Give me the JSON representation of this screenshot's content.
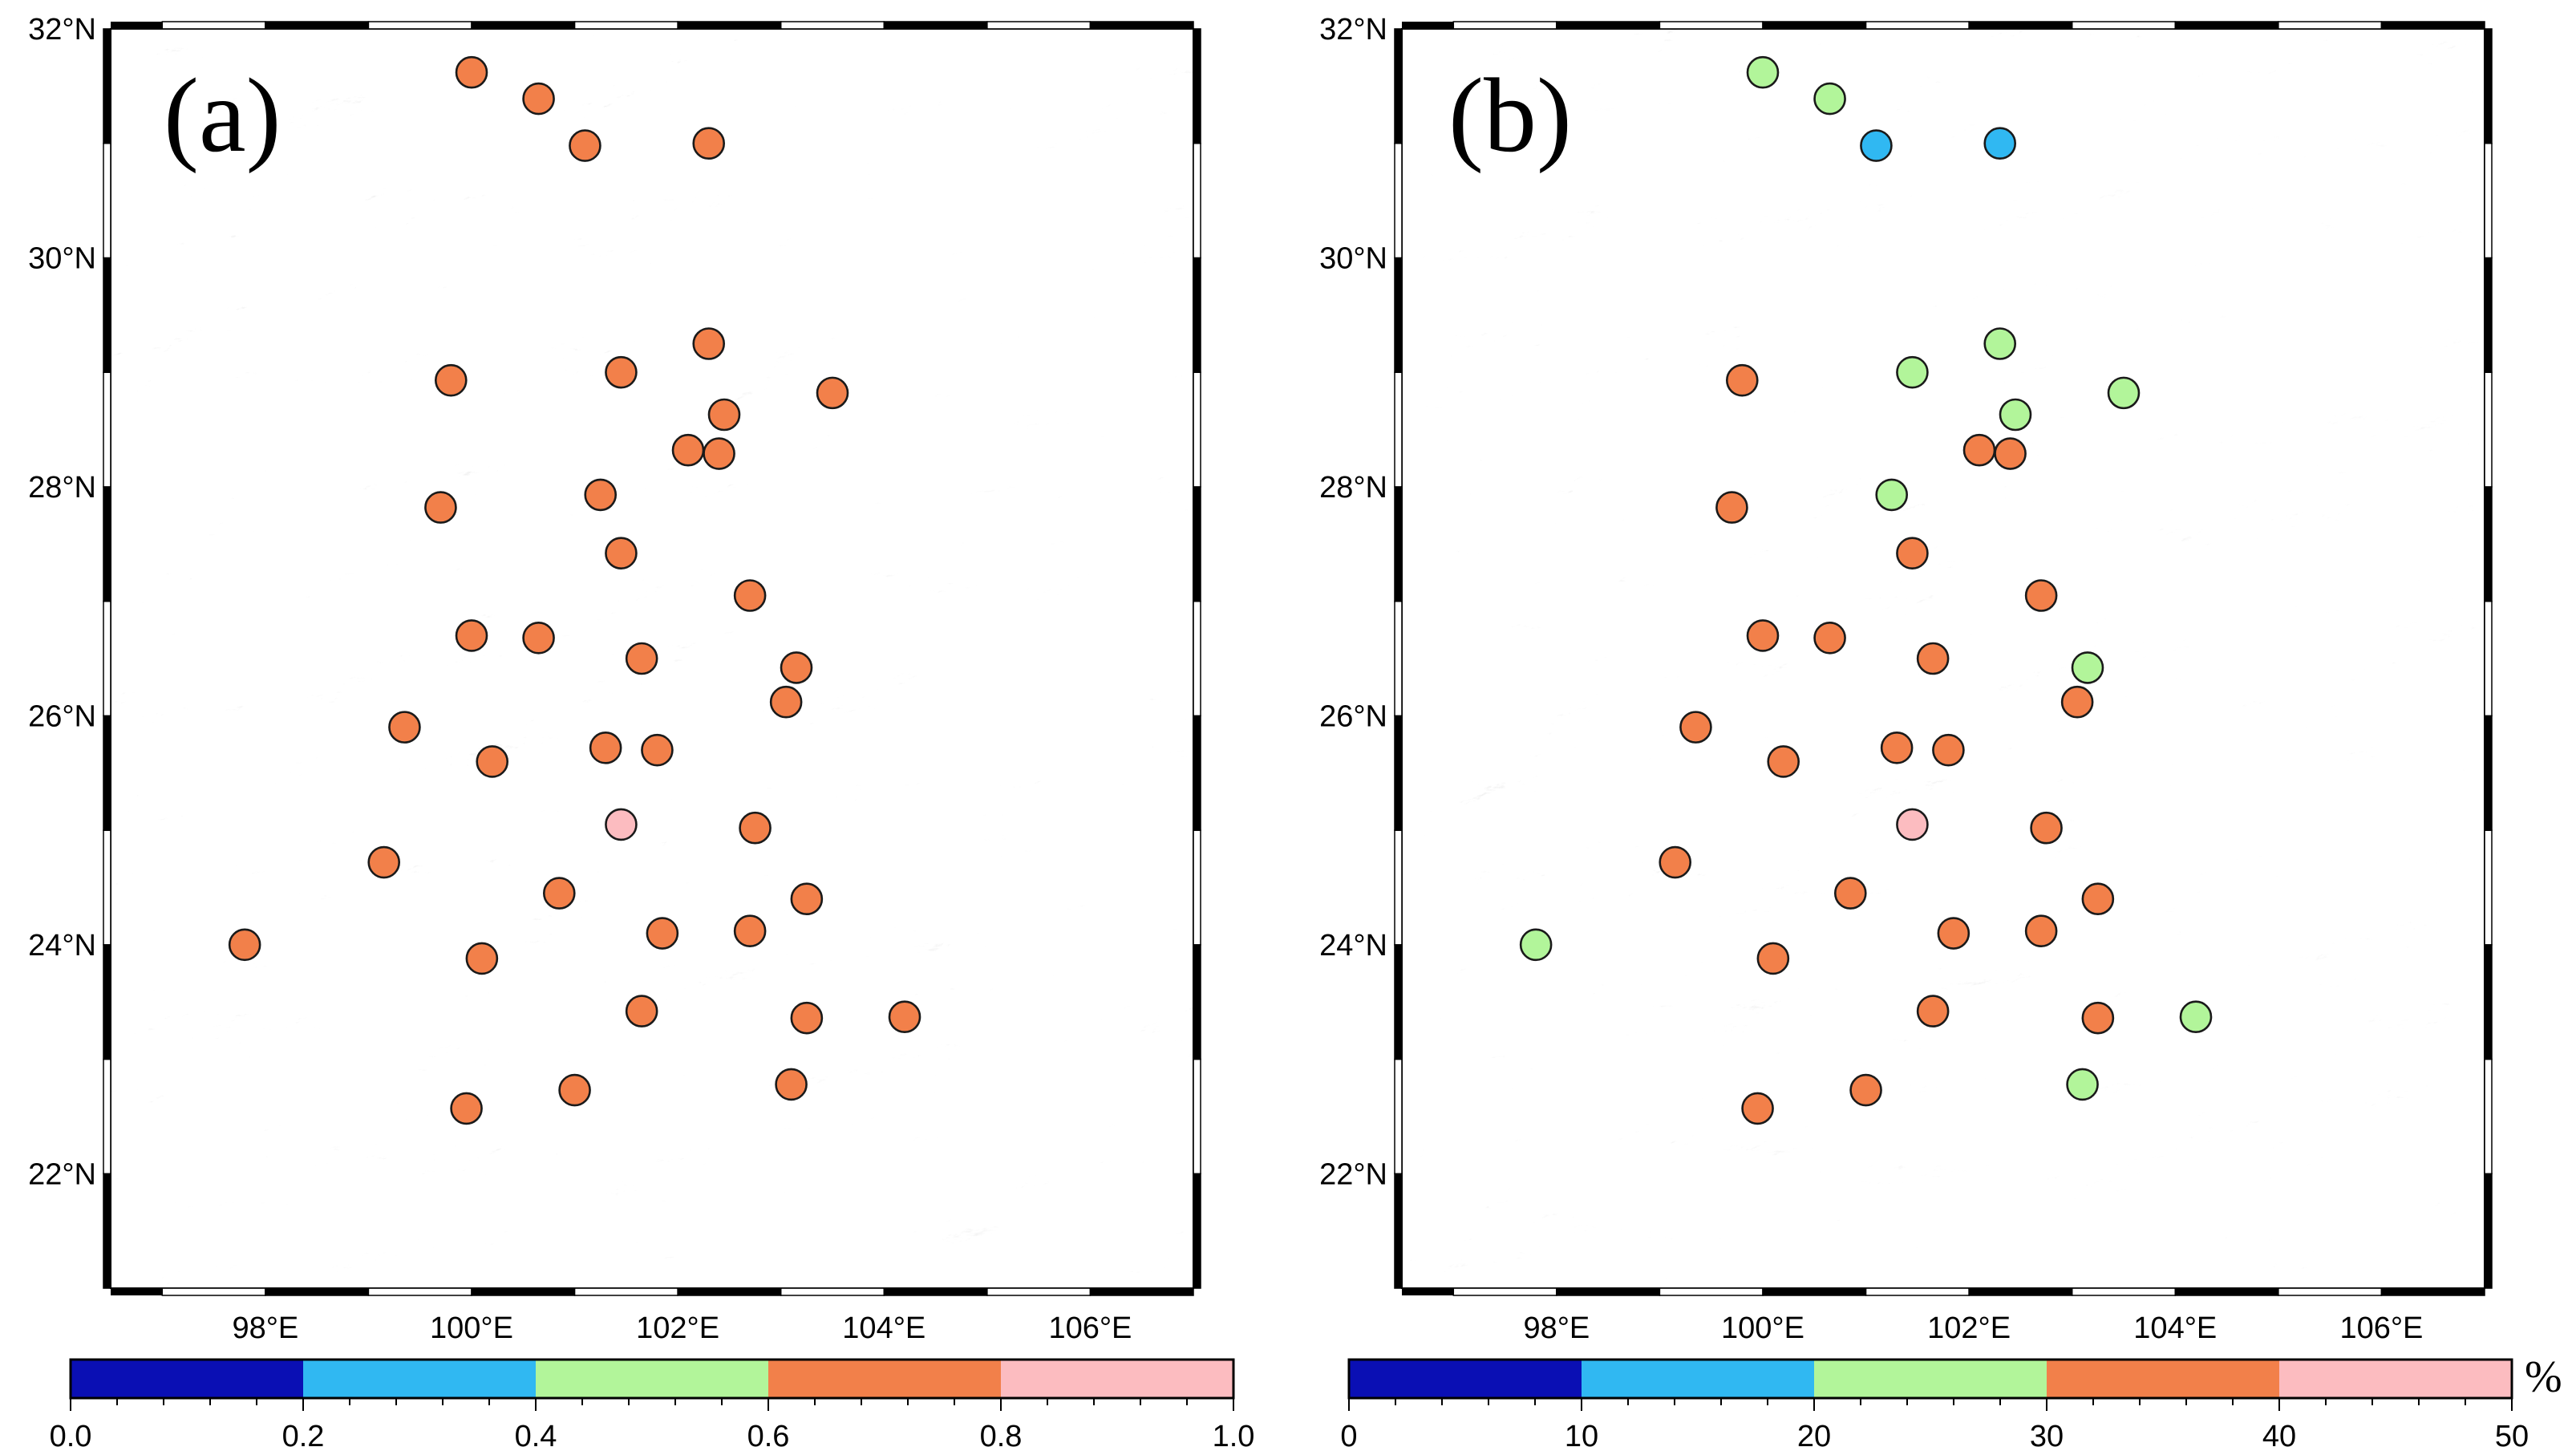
{
  "figure": {
    "panels": [
      {
        "id": "a",
        "label": "(a)",
        "lon_range": [
          96.5,
          107
        ],
        "lat_range": [
          21,
          32
        ],
        "lon_ticks": [
          {
            "value": 98,
            "label": "98°E"
          },
          {
            "value": 100,
            "label": "100°E"
          },
          {
            "value": 102,
            "label": "102°E"
          },
          {
            "value": 104,
            "label": "104°E"
          },
          {
            "value": 106,
            "label": "106°E"
          }
        ],
        "lat_ticks": [
          {
            "value": 22,
            "label": "22°N"
          },
          {
            "value": 24,
            "label": "24°N"
          },
          {
            "value": 26,
            "label": "26°N"
          },
          {
            "value": 28,
            "label": "28°N"
          },
          {
            "value": 30,
            "label": "30°N"
          },
          {
            "value": 32,
            "label": "32°N"
          }
        ],
        "colorbar": {
          "range": [
            0,
            1
          ],
          "bin_colors": [
            "#0a0fb4",
            "#30b8f2",
            "#b2f59a",
            "#f2804a",
            "#fcbcc0"
          ],
          "labels": [
            "0.0",
            "0.2",
            "0.4",
            "0.6",
            "0.8",
            "1.0"
          ],
          "unit": ""
        }
      },
      {
        "id": "b",
        "label": "(b)",
        "lon_range": [
          96.5,
          107
        ],
        "lat_range": [
          21,
          32
        ],
        "lon_ticks": [
          {
            "value": 98,
            "label": "98°E"
          },
          {
            "value": 100,
            "label": "100°E"
          },
          {
            "value": 102,
            "label": "102°E"
          },
          {
            "value": 104,
            "label": "104°E"
          },
          {
            "value": 106,
            "label": "106°E"
          }
        ],
        "lat_ticks": [
          {
            "value": 22,
            "label": "22°N"
          },
          {
            "value": 24,
            "label": "24°N"
          },
          {
            "value": 26,
            "label": "26°N"
          },
          {
            "value": 28,
            "label": "28°N"
          },
          {
            "value": 30,
            "label": "30°N"
          },
          {
            "value": 32,
            "label": "32°N"
          }
        ],
        "colorbar": {
          "range": [
            0,
            50
          ],
          "bin_colors": [
            "#0a0fb4",
            "#30b8f2",
            "#b2f59a",
            "#f2804a",
            "#fcbcc0"
          ],
          "labels": [
            "0",
            "10",
            "20",
            "30",
            "40",
            "50"
          ],
          "unit": "%"
        }
      }
    ]
  },
  "stations": [
    {
      "lon": 100.0,
      "lat": 31.62,
      "a": 0.7,
      "b": 25
    },
    {
      "lon": 100.65,
      "lat": 31.39,
      "a": 0.7,
      "b": 25
    },
    {
      "lon": 101.1,
      "lat": 30.98,
      "a": 0.7,
      "b": 15
    },
    {
      "lon": 102.3,
      "lat": 31.0,
      "a": 0.7,
      "b": 15
    },
    {
      "lon": 99.8,
      "lat": 28.93,
      "a": 0.7,
      "b": 35
    },
    {
      "lon": 101.45,
      "lat": 29.0,
      "a": 0.7,
      "b": 25
    },
    {
      "lon": 102.3,
      "lat": 29.25,
      "a": 0.7,
      "b": 25
    },
    {
      "lon": 103.5,
      "lat": 28.82,
      "a": 0.7,
      "b": 25
    },
    {
      "lon": 102.45,
      "lat": 28.63,
      "a": 0.7,
      "b": 25
    },
    {
      "lon": 102.1,
      "lat": 28.32,
      "a": 0.7,
      "b": 35
    },
    {
      "lon": 102.4,
      "lat": 28.29,
      "a": 0.7,
      "b": 35
    },
    {
      "lon": 101.25,
      "lat": 27.93,
      "a": 0.7,
      "b": 25
    },
    {
      "lon": 99.7,
      "lat": 27.82,
      "a": 0.7,
      "b": 35
    },
    {
      "lon": 101.45,
      "lat": 27.42,
      "a": 0.7,
      "b": 35
    },
    {
      "lon": 102.7,
      "lat": 27.05,
      "a": 0.7,
      "b": 35
    },
    {
      "lon": 100.0,
      "lat": 26.7,
      "a": 0.7,
      "b": 35
    },
    {
      "lon": 100.65,
      "lat": 26.68,
      "a": 0.7,
      "b": 35
    },
    {
      "lon": 101.65,
      "lat": 26.5,
      "a": 0.7,
      "b": 35
    },
    {
      "lon": 103.15,
      "lat": 26.42,
      "a": 0.7,
      "b": 25
    },
    {
      "lon": 103.05,
      "lat": 26.12,
      "a": 0.7,
      "b": 35
    },
    {
      "lon": 99.35,
      "lat": 25.9,
      "a": 0.7,
      "b": 35
    },
    {
      "lon": 101.3,
      "lat": 25.72,
      "a": 0.7,
      "b": 35
    },
    {
      "lon": 101.8,
      "lat": 25.7,
      "a": 0.7,
      "b": 35
    },
    {
      "lon": 100.2,
      "lat": 25.6,
      "a": 0.7,
      "b": 35
    },
    {
      "lon": 101.45,
      "lat": 25.05,
      "a": 0.9,
      "b": 45
    },
    {
      "lon": 102.75,
      "lat": 25.02,
      "a": 0.7,
      "b": 35
    },
    {
      "lon": 99.15,
      "lat": 24.72,
      "a": 0.7,
      "b": 35
    },
    {
      "lon": 100.85,
      "lat": 24.45,
      "a": 0.7,
      "b": 35
    },
    {
      "lon": 103.25,
      "lat": 24.4,
      "a": 0.7,
      "b": 35
    },
    {
      "lon": 101.85,
      "lat": 24.1,
      "a": 0.7,
      "b": 35
    },
    {
      "lon": 102.7,
      "lat": 24.12,
      "a": 0.7,
      "b": 35
    },
    {
      "lon": 97.8,
      "lat": 24.0,
      "a": 0.7,
      "b": 25
    },
    {
      "lon": 100.1,
      "lat": 23.88,
      "a": 0.7,
      "b": 35
    },
    {
      "lon": 101.65,
      "lat": 23.42,
      "a": 0.7,
      "b": 35
    },
    {
      "lon": 103.25,
      "lat": 23.36,
      "a": 0.7,
      "b": 35
    },
    {
      "lon": 104.2,
      "lat": 23.37,
      "a": 0.7,
      "b": 25
    },
    {
      "lon": 101.0,
      "lat": 22.73,
      "a": 0.7,
      "b": 35
    },
    {
      "lon": 103.1,
      "lat": 22.78,
      "a": 0.7,
      "b": 25
    },
    {
      "lon": 99.95,
      "lat": 22.57,
      "a": 0.7,
      "b": 35
    }
  ]
}
